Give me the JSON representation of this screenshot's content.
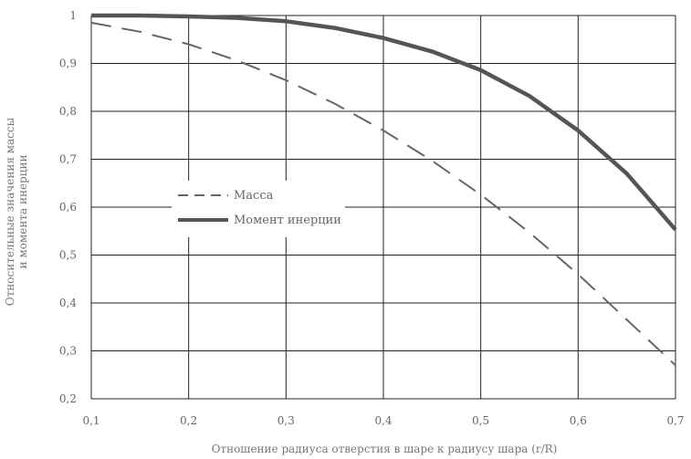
{
  "chart_data": {
    "type": "line",
    "title": "",
    "xlabel": "Отношение радиуса отверстия в шаре к радиусу шара (r/R)",
    "ylabel_line1": "Относительные значения массы",
    "ylabel_line2": "и момента инерции",
    "xlim": [
      0.1,
      0.7
    ],
    "ylim": [
      0.2,
      1.0
    ],
    "grid": true,
    "legend_position": "center-left",
    "x_tick_labels": [
      "0,1",
      "0,2",
      "0,3",
      "0,4",
      "0,5",
      "0,6",
      "0,7"
    ],
    "y_tick_labels": [
      "0,2",
      "0,3",
      "0,4",
      "0,5",
      "0,6",
      "0,7",
      "0,8",
      "0,9",
      "1"
    ],
    "series": [
      {
        "name": "Масса",
        "style": "dashed",
        "color": "#666666",
        "x": [
          0.1,
          0.15,
          0.2,
          0.25,
          0.3,
          0.35,
          0.4,
          0.45,
          0.5,
          0.55,
          0.6,
          0.65,
          0.7
        ],
        "y": [
          0.985,
          0.966,
          0.94,
          0.906,
          0.865,
          0.816,
          0.76,
          0.697,
          0.626,
          0.547,
          0.46,
          0.365,
          0.27
        ]
      },
      {
        "name": "Момент инерции",
        "style": "solid",
        "color": "#555555",
        "x": [
          0.1,
          0.15,
          0.2,
          0.25,
          0.3,
          0.35,
          0.4,
          0.45,
          0.5,
          0.55,
          0.6,
          0.65,
          0.7
        ],
        "y": [
          1.0,
          1.0,
          0.998,
          0.995,
          0.988,
          0.974,
          0.953,
          0.925,
          0.886,
          0.832,
          0.76,
          0.67,
          0.553
        ]
      }
    ]
  }
}
